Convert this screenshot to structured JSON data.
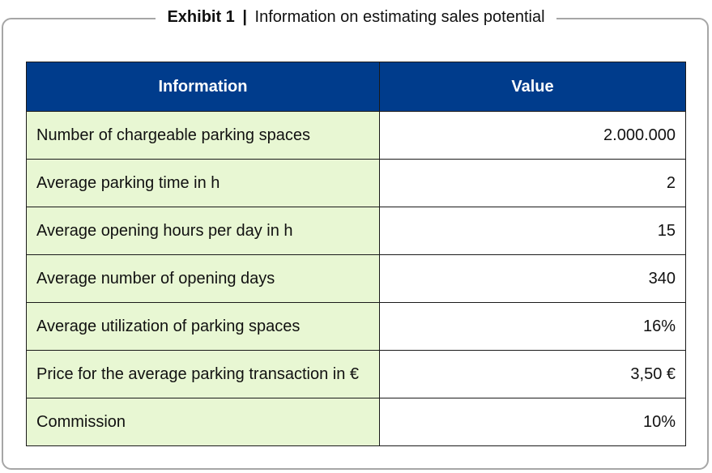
{
  "exhibit": {
    "label": "Exhibit 1",
    "separator": "|",
    "title": "Information on estimating sales potential"
  },
  "table": {
    "headers": [
      "Information",
      "Value"
    ],
    "rows": [
      {
        "label": "Number of chargeable parking spaces",
        "value": "2.000.000"
      },
      {
        "label": "Average parking time in h",
        "value": "2"
      },
      {
        "label": "Average opening hours per day in h",
        "value": "15"
      },
      {
        "label": "Average number of opening days",
        "value": "340"
      },
      {
        "label": "Average utilization of parking spaces",
        "value": "16%"
      },
      {
        "label": "Price for the average parking transaction in €",
        "value": "3,50 €"
      },
      {
        "label": "Commission",
        "value": "10%"
      }
    ]
  },
  "colors": {
    "header_bg": "#003c8c",
    "label_bg": "#e8f7d3",
    "frame_border": "#a6a6a6"
  }
}
